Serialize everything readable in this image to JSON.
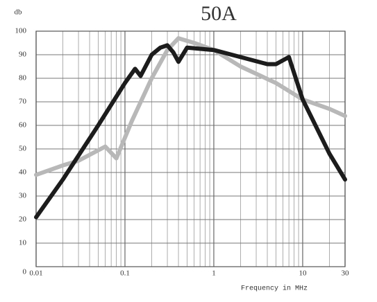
{
  "chart_data": {
    "type": "line",
    "title": "50A",
    "y_label": "db",
    "x_label": "Frequency  in  MHz",
    "log_x": true,
    "grid": true,
    "minor_grid": true,
    "xlim": [
      0.01,
      30
    ],
    "xticks": [
      0.01,
      0.1,
      1,
      10,
      30
    ],
    "ylim": [
      0,
      100
    ],
    "yticks": [
      0,
      10,
      20,
      30,
      40,
      50,
      60,
      70,
      80,
      90,
      100
    ],
    "series": [
      {
        "color": "#1c1c1c",
        "x": [
          0.01,
          0.02,
          0.05,
          0.1,
          0.13,
          0.15,
          0.2,
          0.25,
          0.3,
          0.35,
          0.4,
          0.5,
          1,
          2,
          4,
          5,
          7,
          10,
          20,
          30
        ],
        "values": [
          21,
          37,
          60,
          78,
          84,
          81,
          90,
          93,
          94,
          91,
          87,
          93,
          92,
          89,
          86,
          86,
          89,
          71,
          48,
          37
        ]
      },
      {
        "color": "#b8b8b8",
        "x": [
          0.01,
          0.02,
          0.03,
          0.06,
          0.08,
          0.12,
          0.2,
          0.3,
          0.4,
          0.6,
          1,
          2,
          5,
          10,
          20,
          30
        ],
        "values": [
          39,
          43,
          45,
          51,
          46,
          62,
          80,
          92,
          97,
          95,
          92,
          85,
          78,
          71,
          67,
          64
        ]
      }
    ]
  }
}
